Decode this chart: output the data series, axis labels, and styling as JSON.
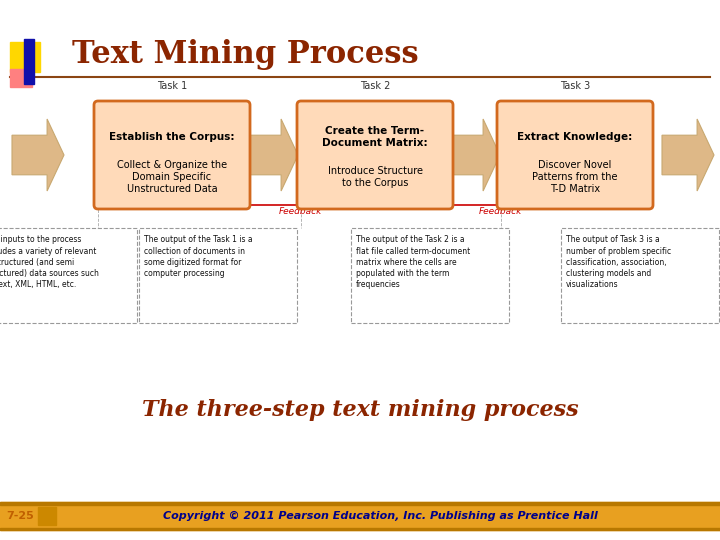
{
  "title": "Text Mining Process",
  "title_color": "#8B2500",
  "title_fontsize": 22,
  "subtitle": "The three-step text mining process",
  "subtitle_color": "#8B2500",
  "subtitle_fontsize": 16,
  "background_color": "#FFFFFF",
  "header_line_color": "#8B4513",
  "footer_bar_color": "#E8A020",
  "footer_text": "Copyright © 2011 Pearson Education, Inc. Publishing as Prentice Hall",
  "footer_label": "7-25",
  "footer_text_color": "#00008B",
  "tasks": [
    "Task 1",
    "Task 2",
    "Task 3"
  ],
  "task_titles": [
    "Establish the Corpus:",
    "Create the Term-\nDocument Matrix:",
    "Extract Knowledge:"
  ],
  "task_bodies": [
    "Collect & Organize the\nDomain Specific\nUnstructured Data",
    "Introduce Structure\nto the Corpus",
    "Discover Novel\nPatterns from the\nT-D Matrix"
  ],
  "task_box_facecolor": "#FFDAB9",
  "task_box_edgecolor": "#D2691E",
  "descriptions": [
    "The inputs to the process\nincludes a variety of relevant\nunstructured (and semi\nstructured) data sources such\nas text, XML, HTML, etc.",
    "The output of the Task 1 is a\ncollection of documents in\nsome digitized format for\ncomputer processing",
    "The output of the Task 2 is a\nflat file called term-document\nmatrix where the cells are\npopulated with the term\nfrequencies",
    "The output of Task 3 is a\nnumber of problem specific\nclassification, association,\nclustering models and\nvisualizations"
  ],
  "desc_box_facecolor": "#FFFFFF",
  "desc_box_edgecolor": "#999999",
  "arrow_facecolor": "#DEB887",
  "arrow_edgecolor": "#C8A870",
  "feedback_color": "#CC0000",
  "feedback_label": "Feedback",
  "logo_yellow": "#FFD700",
  "logo_blue": "#1010AA",
  "logo_red": "#FF8080"
}
